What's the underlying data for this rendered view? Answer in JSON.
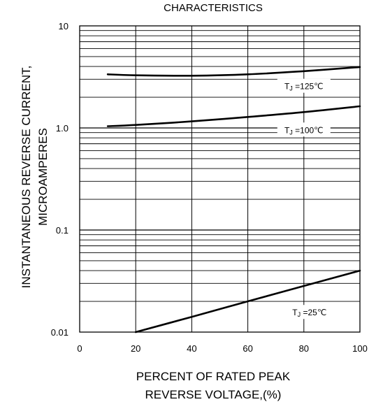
{
  "chart_data": {
    "type": "line",
    "title": "CHARACTERISTICS",
    "xlabel_lines": [
      "PERCENT OF RATED PEAK",
      "REVERSE VOLTAGE,(%)"
    ],
    "ylabel_lines": [
      "INSTANTANEOUS REVERSE CURRENT,",
      "MICROAMPERES"
    ],
    "xlim": [
      0,
      100
    ],
    "ylim": [
      0.01,
      10
    ],
    "yscale": "log",
    "grid": true,
    "x_ticks": [
      0,
      20,
      40,
      60,
      80,
      100
    ],
    "x_tick_labels": [
      "0",
      "20",
      "40",
      "60",
      "80",
      "100"
    ],
    "y_ticks": [
      0.01,
      0.1,
      1.0,
      10
    ],
    "y_tick_labels": [
      "0.01",
      "0.1",
      "1.0",
      "10"
    ],
    "line_color": "#000000",
    "series": [
      {
        "name": "TJ=125℃",
        "label_main": "T",
        "label_sub": "J",
        "label_rest": "=125℃",
        "x": [
          10,
          20,
          40,
          60,
          80,
          100
        ],
        "y": [
          3.35,
          3.28,
          3.25,
          3.35,
          3.6,
          3.95
        ]
      },
      {
        "name": "TJ=100℃",
        "label_main": "T",
        "label_sub": "J",
        "label_rest": "=100℃",
        "x": [
          10,
          20,
          40,
          60,
          80,
          100
        ],
        "y": [
          1.04,
          1.07,
          1.16,
          1.28,
          1.43,
          1.63
        ]
      },
      {
        "name": "TJ=25℃",
        "label_main": "T",
        "label_sub": "J",
        "label_rest": "=25℃",
        "x": [
          20,
          40,
          60,
          80,
          100
        ],
        "y": [
          0.01,
          0.0141,
          0.02,
          0.0283,
          0.04
        ]
      }
    ]
  }
}
